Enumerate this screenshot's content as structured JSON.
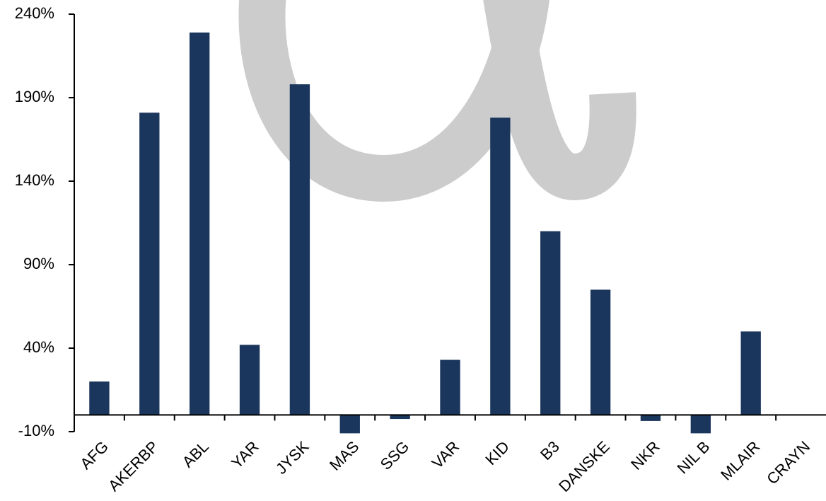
{
  "chart_data": {
    "type": "bar",
    "categories": [
      "AFG",
      "AKERBP",
      "ABL",
      "YAR",
      "JYSK",
      "MAS",
      "SSG",
      "VAR",
      "KID",
      "B3",
      "DANSKE",
      "NKR",
      "NIL B",
      "MLAIR",
      "CRAYN"
    ],
    "values": [
      20,
      181,
      229,
      42,
      198,
      -11,
      -2.4,
      33,
      178,
      110,
      75,
      -3.6,
      -11,
      50,
      0
    ],
    "color": "#1b365d",
    "ylim": [
      -10,
      240
    ],
    "yticks": [
      {
        "value": -10,
        "label": "-10%"
      },
      {
        "value": 40,
        "label": "40%"
      },
      {
        "value": 90,
        "label": "90%"
      },
      {
        "value": 140,
        "label": "140%"
      },
      {
        "value": 190,
        "label": "190%"
      },
      {
        "value": 240,
        "label": "240%"
      }
    ],
    "grid": false
  }
}
